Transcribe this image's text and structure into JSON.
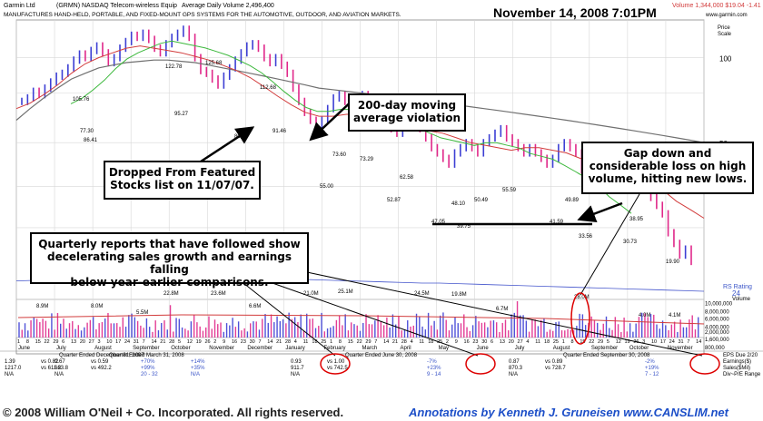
{
  "header": {
    "company": "Garmin Ltd",
    "ticker_line": "(GRMN)  NASDAQ  Telecom-wireless Equip",
    "avg_volume": "Average Daily Volume 2,496,400",
    "date": "November 14, 2008  7:01PM",
    "quote": "Volume 1,344,000  $19.04  -1.41",
    "description": "MANUFACTURES HAND-HELD, PORTABLE, AND FIXED-MOUNT GPS SYSTEMS FOR THE AUTOMOTIVE, OUTDOOR, AND AVIATION MARKETS.",
    "site": "www.garmin.com",
    "price_scale_label": "Price\nScale"
  },
  "callouts": {
    "ma_violation": "200-day moving\naverage violation",
    "dropped": "Dropped From Featured\nStocks list on 11/07/07.",
    "gap_down": "Gap down and\nconsiderable loss on high\nvolume, hitting new lows.",
    "quarterly": "Quarterly reports that have followed show\ndecelerating sales growth and earnings falling\nbelow year-earlier comparisons."
  },
  "rs_rating": {
    "label": "RS Rating",
    "value": "24"
  },
  "volume_label": "Volume",
  "chart_data": {
    "type": "line",
    "title": "",
    "price_axis_ticks": [
      100,
      50
    ],
    "volume_axis_ticks": [
      "10,000,000",
      "8,000,000",
      "6,000,000",
      "4,000,000",
      "2,000,000",
      "1,600,000",
      "800,000"
    ],
    "months": [
      "June",
      "July",
      "August",
      "September",
      "October",
      "November",
      "December",
      "January",
      "February",
      "March",
      "April",
      "May",
      "June",
      "July",
      "August",
      "September",
      "October",
      "November"
    ],
    "date_ticks": [
      "1",
      "8",
      "15",
      "22",
      "29",
      "6",
      "13",
      "20",
      "27",
      "3",
      "10",
      "17",
      "24",
      "31",
      "7",
      "14",
      "21",
      "28",
      "5",
      "12",
      "19",
      "26",
      "2",
      "9",
      "16",
      "23",
      "30",
      "7",
      "14",
      "21",
      "28",
      "4",
      "11",
      "18",
      "25",
      "1",
      "8",
      "15",
      "22",
      "29",
      "7",
      "14",
      "21",
      "28",
      "4",
      "11",
      "18",
      "25",
      "2",
      "9",
      "16",
      "23",
      "30",
      "6",
      "13",
      "20",
      "27",
      "4",
      "11",
      "18",
      "25",
      "1",
      "8",
      "15",
      "22",
      "29",
      "5",
      "12",
      "19",
      "26",
      "3",
      "10",
      "17",
      "24",
      "31",
      "7",
      "14"
    ],
    "price_labels": [
      {
        "label": "122.78",
        "value": 122.78
      },
      {
        "label": "125.68",
        "value": 125.68
      },
      {
        "label": "105.76",
        "value": 105.76
      },
      {
        "label": "112.68",
        "value": 112.68
      },
      {
        "label": "95.27",
        "value": 95.27
      },
      {
        "label": "86.41",
        "value": 86.41
      },
      {
        "label": "91.46",
        "value": 91.46
      },
      {
        "label": "77.30",
        "value": 77.3
      },
      {
        "label": "80.54",
        "value": 80.54
      },
      {
        "label": "73.60",
        "value": 73.6
      },
      {
        "label": "73.29",
        "value": 73.29
      },
      {
        "label": "62.58",
        "value": 62.58
      },
      {
        "label": "55.00",
        "value": 55.0
      },
      {
        "label": "52.87",
        "value": 52.87
      },
      {
        "label": "50.49",
        "value": 50.49
      },
      {
        "label": "55.59",
        "value": 55.59
      },
      {
        "label": "49.89",
        "value": 49.89
      },
      {
        "label": "48.10",
        "value": 48.1
      },
      {
        "label": "47.05",
        "value": 47.05
      },
      {
        "label": "39.75",
        "value": 39.75
      },
      {
        "label": "41.59",
        "value": 41.59
      },
      {
        "label": "38.95",
        "value": 38.95
      },
      {
        "label": "33.56",
        "value": 33.56
      },
      {
        "label": "30.73",
        "value": 30.73
      },
      {
        "label": "19.90",
        "value": 19.9
      }
    ],
    "volume_labels": [
      "8.9M",
      "8.0M",
      "5.5M",
      "22.8M",
      "23.6M",
      "6.6M",
      "21.0M",
      "25.1M",
      "24.5M",
      "19.8M",
      "6.7M",
      "28.0M",
      "4.0M",
      "4.1M"
    ],
    "quarters": [
      {
        "label": "Quarter Ended December 31, 2007",
        "eps": "1.39",
        "eps_prev": "vs  0.82",
        "eps_chg": "+70%",
        "sales": "1217.0",
        "sales_prev": "vs  611.2",
        "sales_chg": "+99%",
        "extra": "N/A",
        "extra2": "20 - 32"
      },
      {
        "label": "Quarter Ended March 31, 2008",
        "eps": "0.67",
        "eps_prev": "vs  0.59",
        "eps_chg": "+14%",
        "sales": "663.8",
        "sales_prev": "vs  492.2",
        "sales_chg": "+35%",
        "extra": "N/A",
        "extra2": "N/A"
      },
      {
        "label": "Quarter Ended June 30, 2008",
        "eps": "0.93",
        "eps_prev": "vs  1.00",
        "eps_chg": "-7%",
        "sales": "911.7",
        "sales_prev": "vs  742.5",
        "sales_chg": "+23%",
        "extra": "N/A",
        "extra2": "9 - 14"
      },
      {
        "label": "Quarter Ended September 30, 2008",
        "eps": "0.87",
        "eps_prev": "vs  0.89",
        "eps_chg": "-2%",
        "sales": "870.3",
        "sales_prev": "vs  728.7",
        "sales_chg": "+19%",
        "extra": "N/A",
        "extra2": "7 - 12"
      }
    ],
    "row_labels": [
      "EPS Due 2/20",
      "Earnings($)",
      "Sales($Mil)",
      "Div~P/E Range"
    ],
    "series": [
      {
        "name": "",
        "role": "price",
        "values": [
          70,
          72,
          76,
          74,
          78,
          82,
          86,
          88,
          92,
          98,
          103,
          100,
          106,
          110,
          104,
          96,
          100,
          108,
          114,
          120,
          118,
          122,
          116,
          108,
          104,
          112,
          118,
          122,
          126,
          118,
          100,
          90,
          88,
          84,
          80,
          86,
          92,
          98,
          104,
          110,
          112,
          108,
          100,
          96,
          100,
          94,
          88,
          78,
          70,
          64,
          60,
          56,
          60,
          66,
          72,
          74,
          70,
          66,
          70,
          74,
          70,
          64,
          60,
          58,
          56,
          54,
          58,
          62,
          60,
          56,
          52,
          48,
          46,
          44,
          42,
          46,
          48,
          50,
          48,
          46,
          50,
          52,
          54,
          56,
          52,
          50,
          48,
          46,
          48,
          46,
          44,
          42,
          44,
          48,
          50,
          48,
          46,
          40,
          38,
          36,
          34,
          36,
          38,
          36,
          34,
          36,
          38,
          40,
          36,
          32,
          30,
          28,
          24,
          22,
          20,
          21,
          19
        ]
      },
      {
        "name": "",
        "role": "ma50",
        "values": [
          66,
          69,
          74,
          80,
          88,
          95,
          100,
          104,
          108,
          110,
          108,
          106,
          104,
          101,
          98,
          94,
          90,
          85,
          79,
          73,
          68,
          64,
          62,
          62,
          63,
          63,
          62,
          60,
          58,
          56,
          55,
          54,
          52,
          50,
          49,
          48,
          47,
          48,
          48,
          47,
          46,
          44,
          43,
          42,
          40,
          38,
          36,
          34,
          31,
          29,
          27
        ]
      },
      {
        "name": "",
        "role": "ma200",
        "values": [
          60,
          66,
          72,
          78,
          84,
          88,
          92,
          94,
          96,
          97,
          98,
          98,
          97,
          96,
          94,
          92,
          90,
          88,
          86,
          84,
          82,
          80,
          78,
          77,
          76,
          75,
          74,
          73,
          72,
          71,
          70,
          69,
          68,
          67,
          66,
          65,
          64,
          63,
          62,
          61,
          60,
          59,
          58,
          57,
          56,
          55,
          54,
          53,
          52,
          51,
          50
        ]
      },
      {
        "name": "",
        "role": "rs_line",
        "values": [
          34,
          35,
          36,
          37,
          38,
          40,
          42,
          44,
          46,
          48,
          47,
          46,
          44,
          42,
          40,
          38,
          37,
          36,
          35,
          34,
          33,
          32,
          31,
          30,
          30,
          29,
          28,
          27,
          26,
          25,
          24,
          23,
          22,
          21,
          20,
          19,
          18,
          17,
          16,
          15
        ]
      }
    ],
    "colors": {
      "up": "#3d3fd4",
      "down": "#e0288a",
      "ma50": "#3cb83c",
      "ma200": "#707070",
      "ma_red": "#d23c3c",
      "rs_line": "#4455cc",
      "accent_text": "#d23c3c",
      "annotation_text": "#1d4fc8"
    }
  },
  "footer": {
    "copyright": "© 2008 William O'Neil + Co. Incorporated.  All rights reserved.",
    "annotation": "Annotations by Kenneth J. Gruneisen  www.CANSLIM.net"
  }
}
